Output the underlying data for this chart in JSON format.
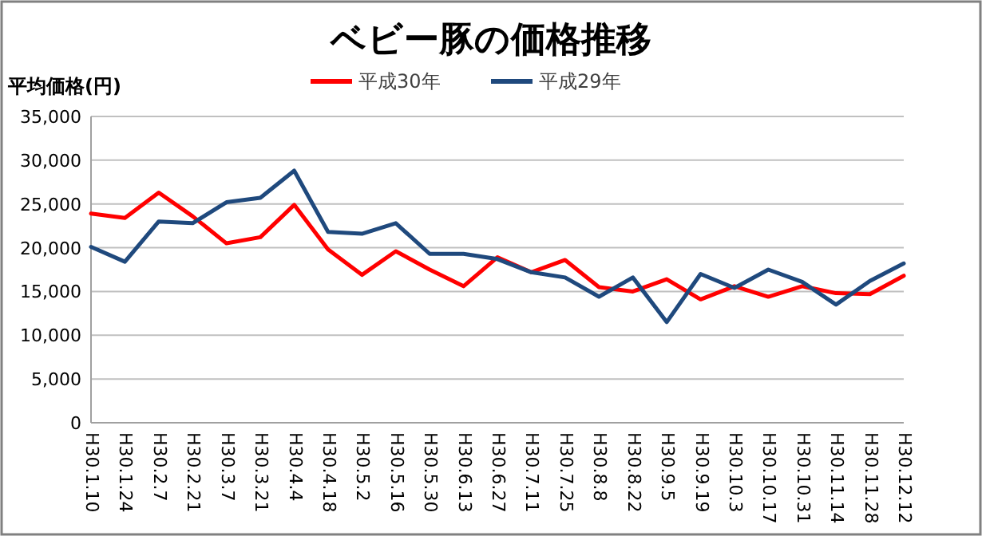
{
  "chart_data": {
    "type": "line",
    "title": "ベビー豚の価格推移",
    "ylabel": "平均価格(円)",
    "categories": [
      "H30.1.10",
      "H30.1.24",
      "H30.2.7",
      "H30.2.21",
      "H30.3.7",
      "H30.3.21",
      "H30.4.4",
      "H30.4.18",
      "H30.5.2",
      "H30.5.16",
      "H30.5.30",
      "H30.6.13",
      "H30.6.27",
      "H30.7.11",
      "H30.7.25",
      "H30.8.8",
      "H30.8.22",
      "H30.9.5",
      "H30.9.19",
      "H30.10.3",
      "H30.10.17",
      "H30.10.31",
      "H30.11.14",
      "H30.11.28",
      "H30.12.12"
    ],
    "series": [
      {
        "name": "平成30年",
        "color": "#ff0000",
        "values": [
          23900,
          23400,
          26300,
          23600,
          20500,
          21200,
          24900,
          19800,
          16900,
          19600,
          17500,
          15600,
          18900,
          17200,
          18600,
          15500,
          15000,
          16400,
          14100,
          15600,
          14400,
          15600,
          14800,
          14700,
          16800
        ]
      },
      {
        "name": "平成29年",
        "color": "#1f497d",
        "values": [
          20100,
          18400,
          23000,
          22800,
          25200,
          25700,
          28800,
          21800,
          21600,
          22800,
          19300,
          19300,
          18700,
          17200,
          16600,
          14400,
          16600,
          11500,
          17000,
          15400,
          17500,
          16100,
          13500,
          16200,
          18200
        ]
      }
    ],
    "ylim": [
      0,
      35000
    ],
    "yticks": [
      0,
      {
        "value": 5000,
        "label": "5,000"
      },
      {
        "value": 10000,
        "label": "10,000"
      },
      {
        "value": 15000,
        "label": "15,000"
      },
      {
        "value": 20000,
        "label": "20,000"
      },
      {
        "value": 25000,
        "label": "25,000"
      },
      {
        "value": 30000,
        "label": "30,000"
      },
      {
        "value": 35000,
        "label": "35,000"
      }
    ],
    "grid": "y",
    "legend": "top",
    "line_style": "solid",
    "marker": "none"
  }
}
